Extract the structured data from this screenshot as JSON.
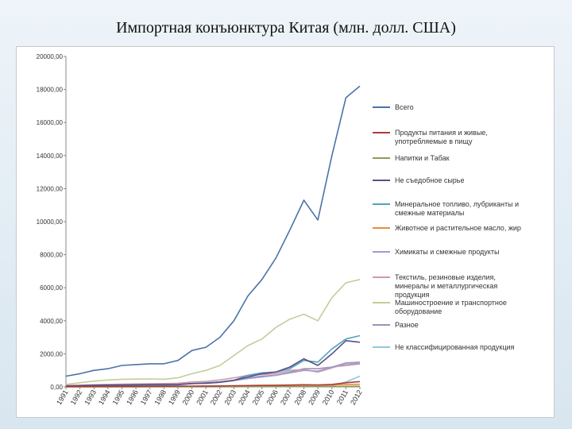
{
  "page": {
    "title": "Импортная конъюнктура Китая (млн. долл. США)"
  },
  "chart_data": {
    "type": "line",
    "title": "Импортная конъюнктура Китая (млн. долл. США)",
    "xlabel": "",
    "ylabel": "",
    "ylim": [
      0,
      20000
    ],
    "yticks": [
      "0,00",
      "2000,00",
      "4000,00",
      "6000,00",
      "8000,00",
      "10000,00",
      "12000,00",
      "14000,00",
      "16000,00",
      "18000,00",
      "20000,00"
    ],
    "x": [
      "1991",
      "1992",
      "1993",
      "1994",
      "1995",
      "1996",
      "1997",
      "1998",
      "1999",
      "2000",
      "2001",
      "2002",
      "2003",
      "2004",
      "2005",
      "2006",
      "2007",
      "2008",
      "2009",
      "2010",
      "2011",
      "2012"
    ],
    "legend_position": "right",
    "series": [
      {
        "name": "Всего",
        "color": "#4a74a8",
        "values": [
          650,
          800,
          1000,
          1100,
          1300,
          1350,
          1400,
          1400,
          1600,
          2200,
          2400,
          3000,
          4000,
          5500,
          6500,
          7800,
          9500,
          11300,
          10100,
          14000,
          17500,
          18200
        ]
      },
      {
        "name": "Продукты питания и живые, употребляемые в пищу",
        "color": "#b0393a",
        "values": [
          20,
          25,
          30,
          30,
          35,
          35,
          40,
          40,
          45,
          50,
          55,
          60,
          70,
          80,
          90,
          100,
          110,
          130,
          120,
          150,
          250,
          320
        ]
      },
      {
        "name": "Напитки и Табак",
        "color": "#8f9a55",
        "values": [
          5,
          5,
          6,
          6,
          7,
          7,
          8,
          8,
          8,
          9,
          10,
          10,
          12,
          14,
          16,
          18,
          20,
          24,
          22,
          28,
          34,
          38
        ]
      },
      {
        "name": "Не съедобное сырье",
        "color": "#5b4e86",
        "values": [
          60,
          80,
          100,
          110,
          120,
          130,
          140,
          140,
          150,
          200,
          220,
          280,
          400,
          600,
          800,
          900,
          1200,
          1700,
          1300,
          2000,
          2800,
          2700
        ]
      },
      {
        "name": "Минеральное топливо, лубриканты и смежные материалы",
        "color": "#4fa3c0",
        "values": [
          40,
          60,
          80,
          90,
          100,
          110,
          120,
          110,
          130,
          200,
          250,
          300,
          400,
          700,
          850,
          900,
          1100,
          1600,
          1500,
          2300,
          2900,
          3100
        ]
      },
      {
        "name": "Животное и растительное масло, жир",
        "color": "#e3913c",
        "values": [
          10,
          12,
          14,
          15,
          18,
          20,
          22,
          20,
          20,
          25,
          25,
          30,
          40,
          50,
          55,
          60,
          80,
          100,
          90,
          120,
          150,
          160
        ]
      },
      {
        "name": "Химикаты и смежные продукты",
        "color": "#9c9ccf",
        "values": [
          50,
          60,
          80,
          90,
          100,
          110,
          120,
          130,
          150,
          200,
          220,
          280,
          380,
          500,
          600,
          700,
          850,
          1000,
          950,
          1200,
          1450,
          1500
        ]
      },
      {
        "name": "Текстиль, резиновые изделия, минералы и металлургическая продукция",
        "color": "#d19aa8",
        "values": [
          80,
          100,
          130,
          150,
          170,
          180,
          190,
          200,
          220,
          300,
          330,
          420,
          550,
          700,
          750,
          800,
          1000,
          1050,
          900,
          1150,
          1400,
          1450
        ]
      },
      {
        "name": "Машиностроение и транспортное оборудование",
        "color": "#c5cc98",
        "values": [
          150,
          250,
          350,
          420,
          460,
          470,
          480,
          460,
          550,
          800,
          1000,
          1300,
          1900,
          2500,
          2900,
          3600,
          4100,
          4400,
          4000,
          5400,
          6300,
          6500
        ]
      },
      {
        "name": "Разное",
        "color": "#a28fb8",
        "values": [
          60,
          70,
          80,
          90,
          100,
          110,
          120,
          130,
          150,
          200,
          230,
          300,
          400,
          550,
          650,
          700,
          900,
          1100,
          1100,
          1200,
          1300,
          1400
        ]
      },
      {
        "name": "Не классифицированная продукция",
        "color": "#8ec9dc",
        "values": [
          5,
          5,
          5,
          6,
          6,
          6,
          7,
          7,
          8,
          10,
          12,
          15,
          18,
          20,
          25,
          30,
          35,
          40,
          40,
          50,
          300,
          650
        ]
      }
    ]
  }
}
